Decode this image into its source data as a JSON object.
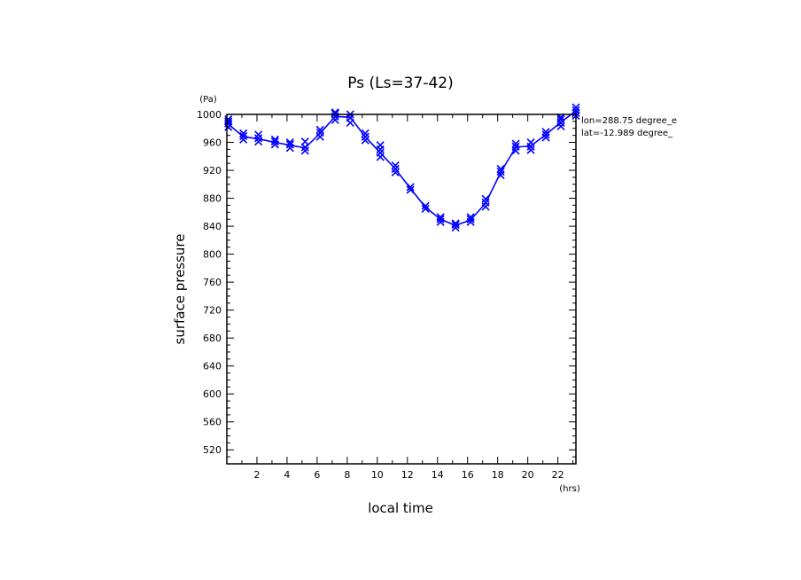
{
  "chart_data": {
    "type": "line",
    "title": "Ps (Ls=37-42)",
    "xlabel": "local time",
    "ylabel": "surface pressure",
    "xunit": "(hrs)",
    "yunit": "(Pa)",
    "xlim": [
      0,
      23.2
    ],
    "ylim": [
      500,
      1000
    ],
    "xticks": [
      2,
      4,
      6,
      8,
      10,
      12,
      14,
      16,
      18,
      20,
      22
    ],
    "yticks": [
      520,
      560,
      600,
      640,
      680,
      720,
      760,
      800,
      840,
      880,
      920,
      960,
      1000
    ],
    "annotations": [
      "lon=288.75 degree_e",
      "lat=-12.989 degree_"
    ],
    "colors": {
      "series": "#0000ff",
      "axes": "#000000"
    },
    "series": [
      {
        "x": [
          0.1,
          1.1,
          2.1,
          3.2,
          4.2,
          5.2,
          6.2,
          7.2,
          8.2,
          9.2,
          10.2,
          11.2,
          12.2,
          13.2,
          14.2,
          15.2,
          16.2,
          17.2,
          18.2,
          19.2,
          20.2,
          21.2,
          22.2,
          23.2
        ],
        "y": [
          986,
          968,
          965,
          960,
          956,
          952,
          973,
          997,
          996,
          968,
          945,
          922,
          894,
          867,
          850,
          841,
          849,
          873,
          917,
          953,
          955,
          971,
          989,
          1005
        ]
      }
    ],
    "markers": {
      "x": [
        0.1,
        0.1,
        0.1,
        0.1,
        1.1,
        1.1,
        1.1,
        2.1,
        2.1,
        2.1,
        3.2,
        3.2,
        3.2,
        4.2,
        4.2,
        4.2,
        5.2,
        5.2,
        5.2,
        6.2,
        6.2,
        6.2,
        7.2,
        7.2,
        7.2,
        7.2,
        8.2,
        8.2,
        8.2,
        9.2,
        9.2,
        9.2,
        10.2,
        10.2,
        10.2,
        10.2,
        11.2,
        11.2,
        11.2,
        12.2,
        12.2,
        13.2,
        13.2,
        14.2,
        14.2,
        14.2,
        15.2,
        15.2,
        15.2,
        16.2,
        16.2,
        16.2,
        17.2,
        17.2,
        17.2,
        18.2,
        18.2,
        18.2,
        19.2,
        19.2,
        19.2,
        20.2,
        20.2,
        20.2,
        21.2,
        21.2,
        21.2,
        22.2,
        22.2,
        22.2,
        22.2,
        23.2,
        23.2,
        23.2,
        23.2
      ],
      "y": [
        982,
        987,
        990,
        993,
        964,
        969,
        973,
        961,
        966,
        971,
        957,
        961,
        964,
        952,
        957,
        960,
        948,
        953,
        961,
        968,
        974,
        978,
        992,
        997,
        1001,
        1003,
        988,
        995,
        1000,
        963,
        968,
        973,
        939,
        945,
        950,
        956,
        917,
        922,
        927,
        892,
        896,
        865,
        869,
        846,
        850,
        853,
        838,
        842,
        844,
        846,
        850,
        853,
        868,
        874,
        879,
        913,
        918,
        922,
        948,
        954,
        958,
        949,
        954,
        960,
        967,
        971,
        975,
        983,
        988,
        993,
        996,
        998,
        1002,
        1006,
        1010
      ]
    }
  }
}
